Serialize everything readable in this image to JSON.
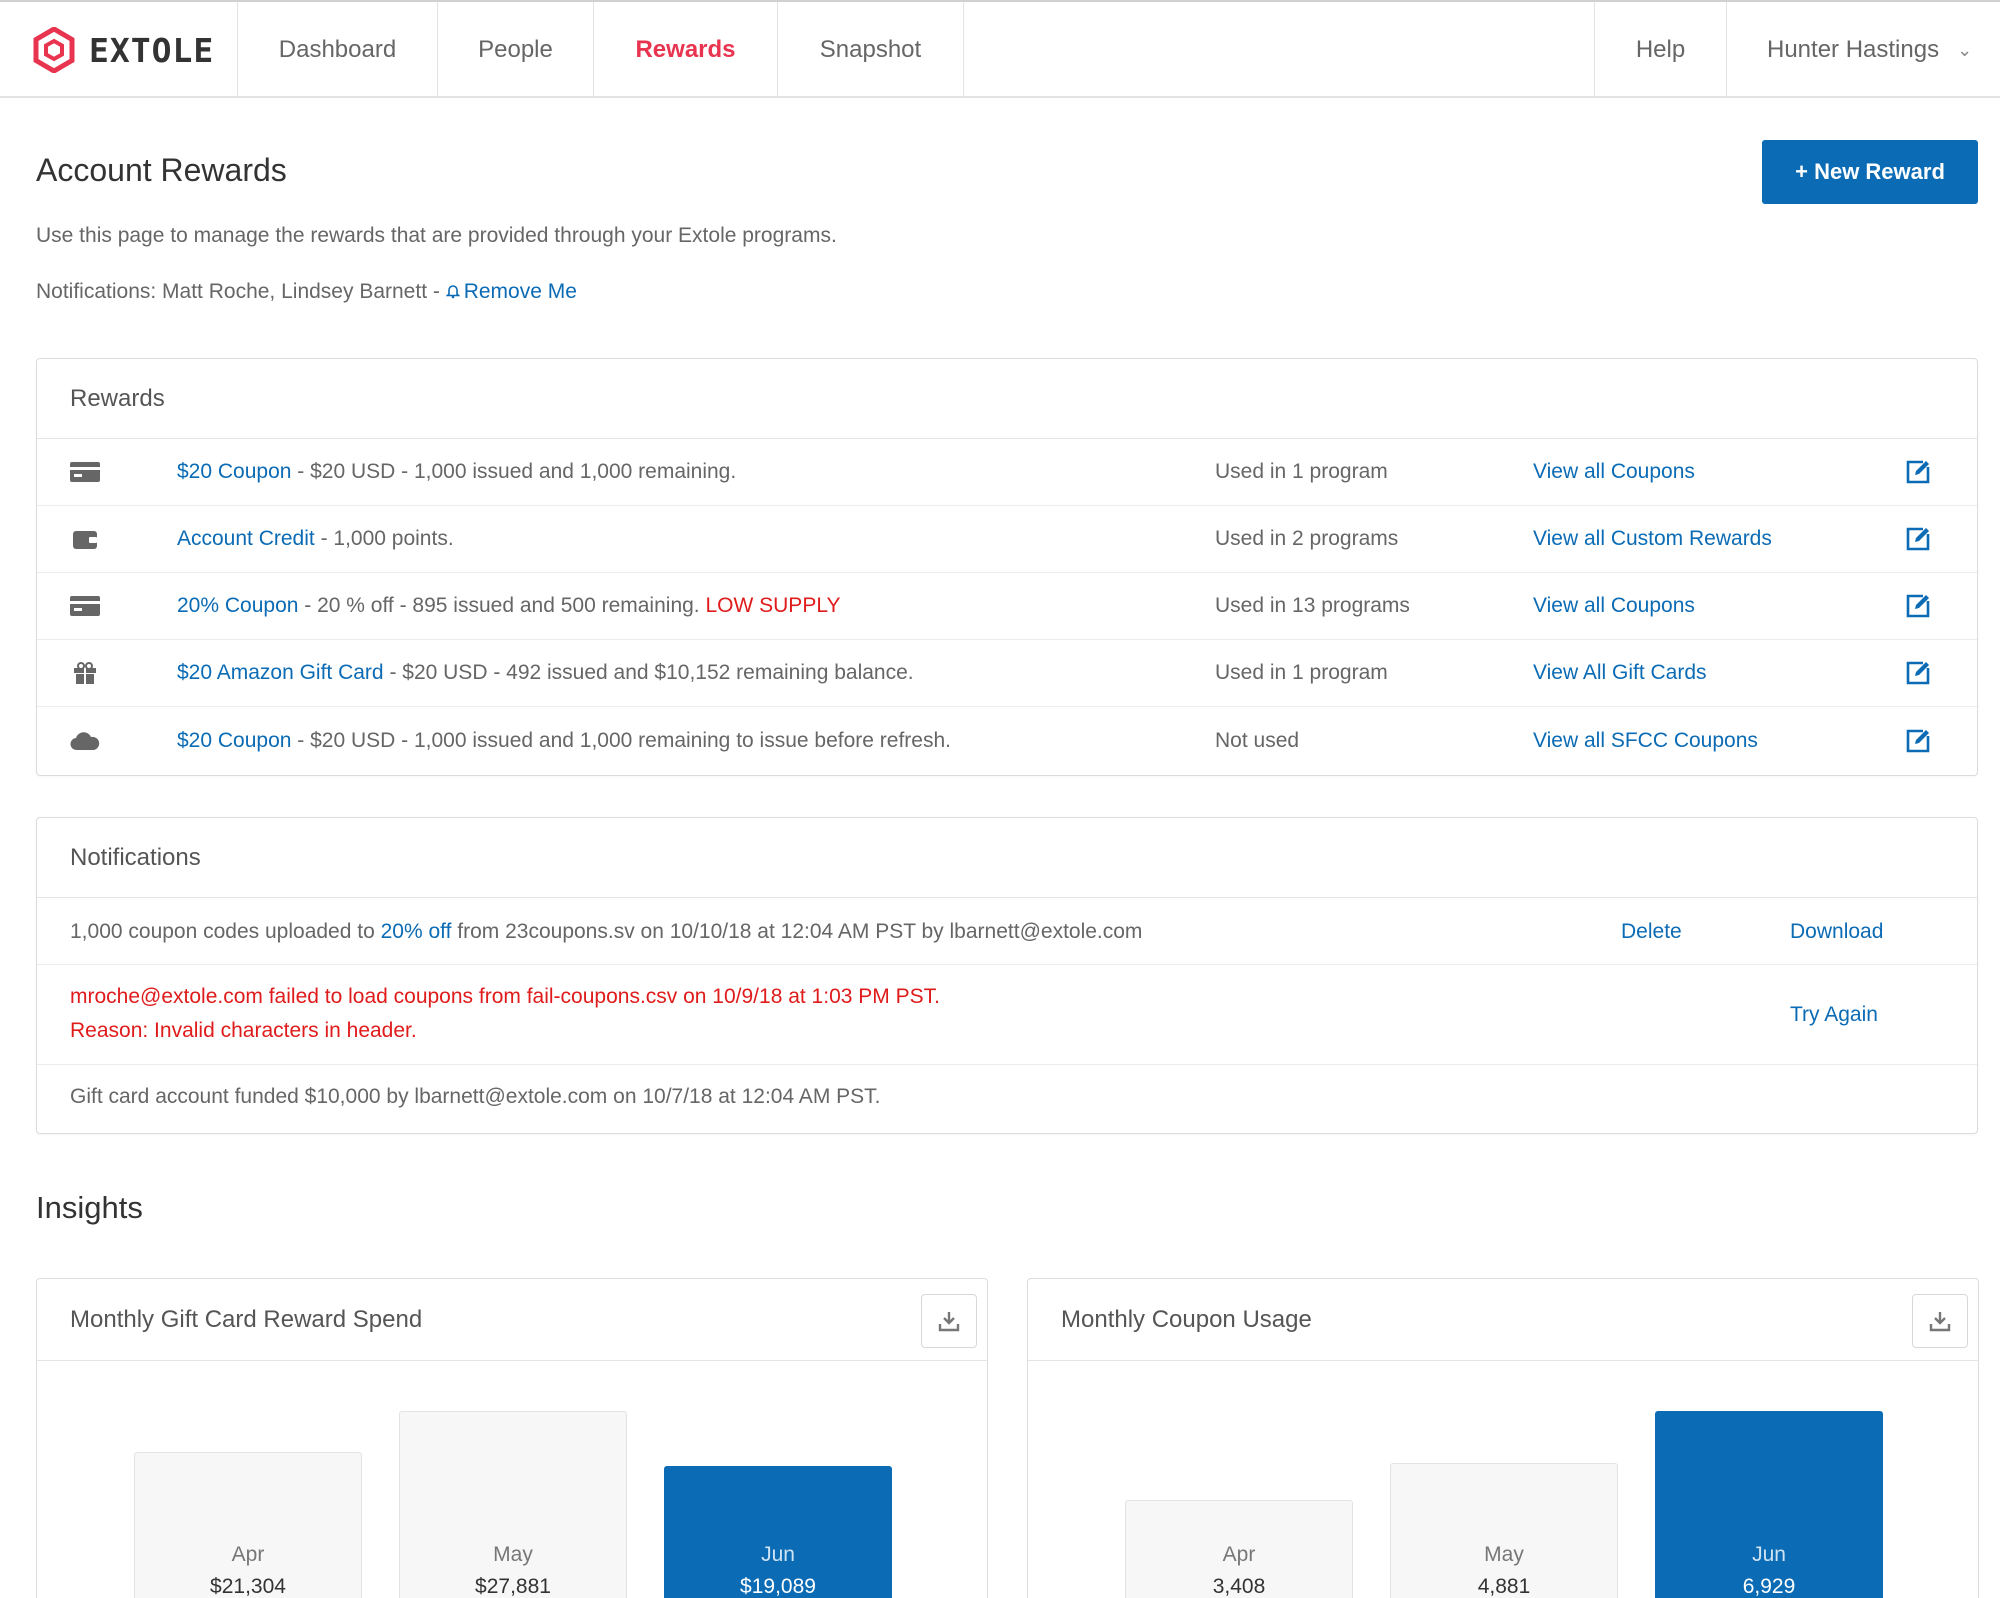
{
  "nav": {
    "brand": "EXTOLE",
    "tabs": [
      "Dashboard",
      "People",
      "Rewards",
      "Snapshot"
    ],
    "help": "Help",
    "user": "Hunter Hastings"
  },
  "header": {
    "title": "Account Rewards",
    "new_button": "+ New Reward",
    "intro": "Use this page to manage the rewards that are provided through your Extole programs.",
    "notifications_prefix": "Notifications: Matt Roche, Lindsey Barnett - ",
    "remove_me": "Remove Me"
  },
  "rewards": {
    "title": "Rewards",
    "items": [
      {
        "icon": "credit-card-icon",
        "name": "$20 Coupon",
        "detail": " - $20 USD - 1,000 issued and 1,000 remaining.",
        "flag": "",
        "used": "Used in 1 program",
        "view": "View all Coupons"
      },
      {
        "icon": "wallet-icon",
        "name": "Account Credit",
        "detail": " - 1,000 points.",
        "flag": "",
        "used": "Used in 2 programs",
        "view": "View all Custom Rewards"
      },
      {
        "icon": "credit-card-icon",
        "name": "20% Coupon",
        "detail": " - 20 % off - 895 issued and 500 remaining. ",
        "flag": "LOW SUPPLY",
        "used": "Used in 13 programs",
        "view": "View all Coupons"
      },
      {
        "icon": "gift-icon",
        "name": "$20 Amazon Gift Card",
        "detail": " - $20 USD - 492 issued and $10,152 remaining balance.",
        "flag": "",
        "used": "Used in 1 program",
        "view": "View All Gift Cards"
      },
      {
        "icon": "cloud-icon",
        "name": "$20 Coupon",
        "detail": " - $20 USD - 1,000 issued and 1,000 remaining to issue before refresh.",
        "flag": "",
        "used": "Not used",
        "view": "View all SFCC Coupons"
      }
    ]
  },
  "notifications": {
    "title": "Notifications",
    "n1": {
      "pre": "1,000 coupon codes uploaded to ",
      "link": "20% off",
      "post": " from 23coupons.sv on 10/10/18 at 12:04 AM PST by lbarnett@extole.com",
      "delete": "Delete",
      "download": "Download"
    },
    "n2": {
      "line1": "mroche@extole.com failed to load coupons from fail-coupons.csv on 10/9/18 at 1:03 PM PST.",
      "line2": "Reason: Invalid characters in header.",
      "retry": "Try Again"
    },
    "n3": {
      "text": "Gift card account funded $10,000 by lbarnett@extole.com on 10/7/18 at 12:04 AM PST."
    }
  },
  "insights": {
    "title": "Insights",
    "gift_chart": {
      "title": "Monthly Gift Card Reward Spend"
    },
    "coupon_chart": {
      "title": "Monthly Coupon Usage"
    }
  },
  "chart_data": [
    {
      "type": "bar",
      "title": "Monthly Gift Card Reward Spend",
      "categories": [
        "Apr",
        "May",
        "Jun"
      ],
      "values": [
        21304,
        27881,
        19089
      ],
      "labels": [
        "$21,304",
        "$27,881",
        "$19,089"
      ],
      "highlight": "Jun",
      "colors": {
        "bar": "#f7f7f7",
        "highlight": "#0b6bb5"
      }
    },
    {
      "type": "bar",
      "title": "Monthly Coupon Usage",
      "categories": [
        "Apr",
        "May",
        "Jun"
      ],
      "values": [
        3408,
        4881,
        6929
      ],
      "labels": [
        "3,408",
        "4,881",
        "6,929"
      ],
      "highlight": "Jun",
      "colors": {
        "bar": "#f7f7f7",
        "highlight": "#0b6bb5"
      }
    }
  ],
  "colors": {
    "accent": "#0b6bb5",
    "brand_red": "#e8344f",
    "alert_red": "#e01b1b"
  }
}
